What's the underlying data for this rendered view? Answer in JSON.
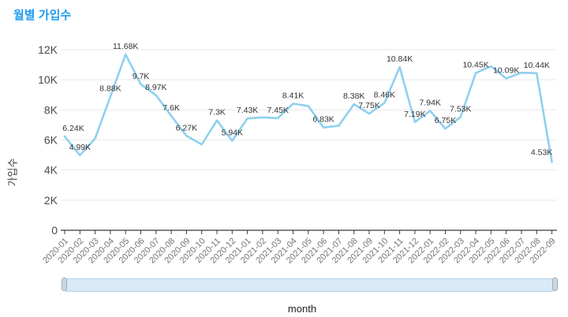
{
  "header": {
    "title": "월별 가입수"
  },
  "colors": {
    "title": "#1e9cf0",
    "line": "#8fd0ee",
    "grid": "#e9e9e9",
    "axis_line": "#3a3a3a",
    "y_tick_label": "#4a4a4a",
    "x_tick_label": "#757575",
    "value_label": "#333333",
    "scrollbar_fill": "#d8e9f7",
    "scrollbar_border": "#b3d3ec",
    "scrollbar_handle": "#cdd6df"
  },
  "chart_data": {
    "type": "line",
    "title": "월별 가입수",
    "xlabel": "month",
    "ylabel": "가입수",
    "legend": "none",
    "grid": "horizontal",
    "ylim": [
      0,
      12000
    ],
    "y_ticks": [
      "0",
      "2K",
      "4K",
      "6K",
      "8K",
      "10K",
      "12K"
    ],
    "categories": [
      "2020-01",
      "2020-02",
      "2020-03",
      "2020-04",
      "2020-05",
      "2020-06",
      "2020-07",
      "2020-08",
      "2020-09",
      "2020-10",
      "2020-11",
      "2020-12",
      "2021-01",
      "2021-02",
      "2021-03",
      "2021-04",
      "2021-05",
      "2021-06",
      "2021-07",
      "2021-08",
      "2021-09",
      "2021-10",
      "2021-11",
      "2021-12",
      "2022-01",
      "2022-02",
      "2022-03",
      "2022-04",
      "2022-05",
      "2022-06",
      "2022-07",
      "2022-08",
      "2022-09"
    ],
    "values": [
      6240,
      4990,
      6100,
      8880,
      11680,
      9700,
      8970,
      7600,
      6270,
      5700,
      7300,
      5940,
      7430,
      7500,
      7450,
      8410,
      8260,
      6830,
      6950,
      8380,
      7750,
      8460,
      10840,
      7190,
      7940,
      6750,
      7530,
      10450,
      10900,
      10090,
      10470,
      10440,
      4530
    ],
    "point_labels": [
      "6.24K",
      "4.99K",
      null,
      "8.88K",
      "11.68K",
      "9.7K",
      "8.97K",
      "7.6K",
      "6.27K",
      null,
      "7.3K",
      "5.94K",
      "7.43K",
      null,
      "7.45K",
      "8.41K",
      null,
      "6.83K",
      null,
      "8.38K",
      "7.75K",
      "8.46K",
      "10.84K",
      "7.19K",
      "7.94K",
      "6.75K",
      "7.53K",
      "10.45K",
      null,
      "10.09K",
      null,
      "10.44K",
      "4.53K"
    ]
  }
}
